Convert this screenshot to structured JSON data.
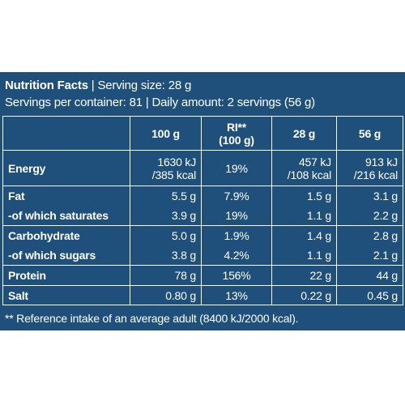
{
  "header": {
    "title": "Nutrition Facts",
    "serving": " | Serving size: 28 g",
    "line2": "Servings per container: 81 | Daily amount: 2 servings (56 g)"
  },
  "columns": {
    "c100": "100 g",
    "ri_a": "RI**",
    "ri_b": "(100 g)",
    "c28": "28 g",
    "c56": "56 g"
  },
  "rows": {
    "energy": {
      "label": "Energy",
      "v100a": "1630 kJ",
      "v100b": "/385 kcal",
      "ri": "19%",
      "v28a": "457 kJ",
      "v28b": "/108 kcal",
      "v56a": "913 kJ",
      "v56b": "/216 kcal"
    },
    "fat": {
      "label": "Fat",
      "v100": "5.5 g",
      "ri": "7.9%",
      "v28": "1.5 g",
      "v56": "3.1 g"
    },
    "saturates": {
      "label": "-of which saturates",
      "v100": "3.9 g",
      "ri": "19%",
      "v28": "1.1 g",
      "v56": "2.2 g"
    },
    "carb": {
      "label": "Carbohydrate",
      "v100": "5.0 g",
      "ri": "1.9%",
      "v28": "1.4 g",
      "v56": "2.8 g"
    },
    "sugars": {
      "label": "-of which sugars",
      "v100": "3.8 g",
      "ri": "4.2%",
      "v28": "1.1 g",
      "v56": "2.1 g"
    },
    "protein": {
      "label": "Protein",
      "v100": "78 g",
      "ri": "156%",
      "v28": "22 g",
      "v56": "44 g"
    },
    "salt": {
      "label": "Salt",
      "v100": "0.80 g",
      "ri": "13%",
      "v28": "0.22 g",
      "v56": "0.45 g"
    }
  },
  "footnote": "** Reference intake of an average adult (8400 kJ/2000 kcal)."
}
